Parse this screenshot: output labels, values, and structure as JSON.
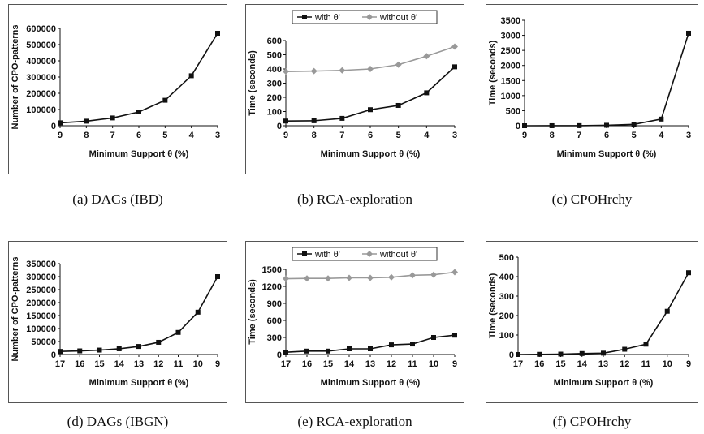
{
  "colors": {
    "series_1": "#111111",
    "series_2": "#999999",
    "axis": "#111111",
    "frame": "#555555"
  },
  "chart_data": [
    {
      "type": "line",
      "caption": "(a) DAGs (IBD)",
      "x": [
        "9",
        "8",
        "7",
        "6",
        "5",
        "4",
        "3"
      ],
      "xlabel": "Minimum Support θ (%)",
      "ylabel": "Number of CPO-patterns",
      "ylim": [
        0,
        600000
      ],
      "yticks": [
        "0",
        "100000",
        "200000",
        "300000",
        "400000",
        "500000",
        "600000"
      ],
      "legend": "none",
      "series": [
        {
          "values": [
            18000,
            28000,
            48000,
            85000,
            157000,
            308000,
            570000
          ],
          "marker": "square",
          "color": "#111111"
        }
      ]
    },
    {
      "type": "line",
      "caption": "(b) RCA-exploration",
      "x": [
        "9",
        "8",
        "7",
        "6",
        "5",
        "4",
        "3"
      ],
      "xlabel": "Minimum Support θ (%)",
      "ylabel": "Time (seconds)",
      "ylim": [
        0,
        600
      ],
      "yticks": [
        "0",
        "100",
        "200",
        "300",
        "400",
        "500",
        "600"
      ],
      "legend": "top",
      "series": [
        {
          "name": "with θ'",
          "values": [
            33,
            35,
            52,
            113,
            143,
            232,
            415
          ],
          "marker": "square",
          "color": "#111111"
        },
        {
          "name": "without θ'",
          "values": [
            382,
            385,
            390,
            400,
            430,
            490,
            557
          ],
          "marker": "diamond",
          "color": "#999999"
        }
      ]
    },
    {
      "type": "line",
      "caption": "(c) CPOHrchy",
      "x": [
        "9",
        "8",
        "7",
        "6",
        "5",
        "4",
        "3"
      ],
      "xlabel": "Minimum Support θ (%)",
      "ylabel": "Time (seconds)",
      "ylim": [
        0,
        3500
      ],
      "yticks": [
        "0",
        "500",
        "1000",
        "1500",
        "2000",
        "2500",
        "3000",
        "3500"
      ],
      "legend": "none",
      "series": [
        {
          "values": [
            0,
            1,
            3,
            15,
            45,
            220,
            3070
          ],
          "marker": "square",
          "color": "#111111"
        }
      ]
    },
    {
      "type": "line",
      "caption": "(d)  DAGs (IBGN)",
      "x": [
        "17",
        "16",
        "15",
        "14",
        "13",
        "12",
        "11",
        "10",
        "9"
      ],
      "xlabel": "Minimum Support θ (%)",
      "ylabel": "Number of CPO-patterns",
      "ylim": [
        0,
        350000
      ],
      "yticks": [
        "0",
        "50000",
        "100000",
        "150000",
        "200000",
        "250000",
        "300000",
        "350000"
      ],
      "legend": "none",
      "series": [
        {
          "values": [
            12000,
            14000,
            17000,
            22000,
            31000,
            47000,
            85000,
            163000,
            300000
          ],
          "marker": "square",
          "color": "#111111"
        }
      ]
    },
    {
      "type": "line",
      "caption": "(e) RCA-exploration",
      "x": [
        "17",
        "16",
        "15",
        "14",
        "13",
        "12",
        "11",
        "10",
        "9"
      ],
      "xlabel": "Minimum Support θ (%)",
      "ylabel": "Time (seconds)",
      "ylim": [
        0,
        1500
      ],
      "yticks": [
        "0",
        "300",
        "600",
        "900",
        "1200",
        "1500"
      ],
      "legend": "top",
      "series": [
        {
          "name": "with θ'",
          "values": [
            40,
            60,
            60,
            100,
            100,
            170,
            185,
            300,
            340
          ],
          "marker": "square",
          "color": "#111111"
        },
        {
          "name": "without θ'",
          "values": [
            1335,
            1340,
            1340,
            1350,
            1350,
            1360,
            1395,
            1405,
            1450
          ],
          "marker": "diamond",
          "color": "#999999"
        }
      ]
    },
    {
      "type": "line",
      "caption": "(f) CPOHrchy",
      "x": [
        "17",
        "16",
        "15",
        "14",
        "13",
        "12",
        "11",
        "10",
        "9"
      ],
      "xlabel": "Minimum Support θ (%)",
      "ylabel": "Time (seconds)",
      "ylim": [
        0,
        500
      ],
      "yticks": [
        "0",
        "100",
        "200",
        "300",
        "400",
        "500"
      ],
      "legend": "none",
      "series": [
        {
          "values": [
            0,
            1,
            2,
            5,
            7,
            27,
            53,
            222,
            420
          ],
          "marker": "square",
          "color": "#111111"
        }
      ]
    }
  ]
}
